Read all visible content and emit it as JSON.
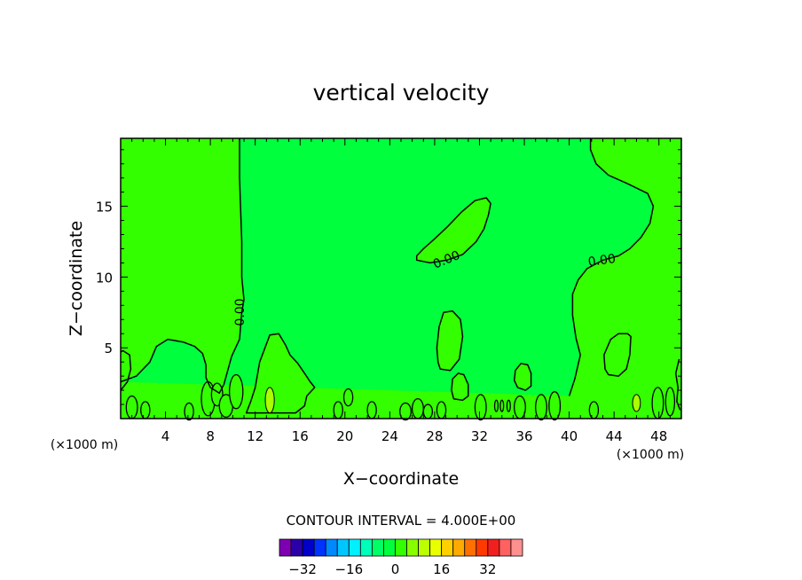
{
  "chart_data": {
    "type": "contour",
    "title": "vertical velocity",
    "xlabel": "X−coordinate",
    "ylabel": "Z−coordinate",
    "x_unit_left": "(×1000 m)",
    "x_unit_right": "(×1000 m)",
    "xlim": [
      0,
      50
    ],
    "ylim": [
      0,
      19.8
    ],
    "x_ticks": [
      4,
      8,
      12,
      16,
      20,
      24,
      28,
      32,
      36,
      40,
      44,
      48
    ],
    "y_ticks": [
      5,
      10,
      15
    ],
    "contour_interval_text": "CONTOUR INTERVAL = 4.000E+00",
    "contour_label": "0.00",
    "colorbar": {
      "colors": [
        "#7f00b2",
        "#2b00a8",
        "#0000c8",
        "#0033ff",
        "#0088ff",
        "#00c6ff",
        "#00f0ff",
        "#00ffb8",
        "#00ff66",
        "#00ff3c",
        "#33ff00",
        "#88ff00",
        "#bbff00",
        "#eaff00",
        "#ffd000",
        "#ffaa00",
        "#ff7000",
        "#ff3a00",
        "#f02020",
        "#ff6060",
        "#ff9090"
      ],
      "tick_labels": [
        "−32",
        "−16",
        "0",
        "16",
        "32"
      ],
      "tick_values": [
        -32,
        -16,
        0,
        16,
        32
      ]
    },
    "regions": [
      {
        "name": "positive",
        "color": "#33ff00"
      },
      {
        "name": "near-zero",
        "color": "#00ff3c"
      },
      {
        "name": "strong-positive",
        "color": "#aaff00"
      }
    ],
    "contours": [
      {
        "name": "left-upper",
        "level": 0.0,
        "points": [
          [
            0,
            2.6
          ],
          [
            1.4,
            3.0
          ],
          [
            2.6,
            4.0
          ],
          [
            3.2,
            5.1
          ],
          [
            4.2,
            5.6
          ],
          [
            5.6,
            5.4
          ],
          [
            6.6,
            5.1
          ],
          [
            7.3,
            4.6
          ],
          [
            7.6,
            3.8
          ],
          [
            7.6,
            2.9
          ],
          [
            8.0,
            2.2
          ],
          [
            8.8,
            1.8
          ],
          [
            9.2,
            2.4
          ],
          [
            9.9,
            4.4
          ],
          [
            10.6,
            5.6
          ],
          [
            10.8,
            7.5
          ],
          [
            11.0,
            8.4
          ],
          [
            10.8,
            10.0
          ],
          [
            10.8,
            12.5
          ],
          [
            10.6,
            17.0
          ],
          [
            10.6,
            19.8
          ]
        ]
      },
      {
        "name": "right-upper",
        "level": 0.0,
        "points": [
          [
            40.0,
            1.6
          ],
          [
            40.5,
            2.8
          ],
          [
            41.0,
            4.5
          ],
          [
            40.6,
            5.7
          ],
          [
            40.3,
            7.3
          ],
          [
            40.3,
            8.8
          ],
          [
            40.8,
            9.8
          ],
          [
            41.6,
            10.6
          ],
          [
            43.0,
            11.2
          ],
          [
            44.4,
            11.5
          ],
          [
            45.4,
            12.0
          ],
          [
            46.4,
            12.8
          ],
          [
            47.2,
            13.8
          ],
          [
            47.5,
            15.0
          ],
          [
            47.0,
            15.9
          ],
          [
            45.2,
            16.6
          ],
          [
            43.5,
            17.2
          ],
          [
            42.4,
            18.0
          ],
          [
            41.9,
            19.0
          ],
          [
            41.9,
            19.8
          ]
        ]
      },
      {
        "name": "upper-blob",
        "level": 0.0,
        "points": [
          [
            26.4,
            11.2
          ],
          [
            27.6,
            11.0
          ],
          [
            29.1,
            11.2
          ],
          [
            30.5,
            11.6
          ],
          [
            31.7,
            12.5
          ],
          [
            32.4,
            13.4
          ],
          [
            32.8,
            14.4
          ],
          [
            33.0,
            15.2
          ],
          [
            32.6,
            15.6
          ],
          [
            31.6,
            15.4
          ],
          [
            30.4,
            14.6
          ],
          [
            29.2,
            13.6
          ],
          [
            28.0,
            12.7
          ],
          [
            27.0,
            12.0
          ],
          [
            26.4,
            11.5
          ]
        ]
      },
      {
        "name": "mid-blob",
        "level": 0.0,
        "points": [
          [
            28.5,
            3.5
          ],
          [
            29.4,
            3.4
          ],
          [
            30.2,
            4.2
          ],
          [
            30.5,
            5.8
          ],
          [
            30.3,
            7.0
          ],
          [
            29.6,
            7.6
          ],
          [
            28.8,
            7.5
          ],
          [
            28.4,
            6.5
          ],
          [
            28.2,
            5.0
          ],
          [
            28.3,
            4.0
          ]
        ]
      },
      {
        "name": "right-blob",
        "level": 0.0,
        "points": [
          [
            43.5,
            3.1
          ],
          [
            44.4,
            3.0
          ],
          [
            45.1,
            3.5
          ],
          [
            45.4,
            4.5
          ],
          [
            45.5,
            5.8
          ],
          [
            45.2,
            6.0
          ],
          [
            44.4,
            6.0
          ],
          [
            43.7,
            5.6
          ],
          [
            43.1,
            4.5
          ],
          [
            43.2,
            3.5
          ]
        ]
      },
      {
        "name": "blob-36",
        "level": 0.0,
        "points": [
          [
            35.4,
            2.2
          ],
          [
            36.1,
            2.0
          ],
          [
            36.6,
            2.3
          ],
          [
            36.6,
            3.2
          ],
          [
            36.3,
            3.8
          ],
          [
            35.7,
            3.9
          ],
          [
            35.2,
            3.4
          ],
          [
            35.1,
            2.7
          ]
        ]
      },
      {
        "name": "blob-30",
        "level": 0.0,
        "points": [
          [
            29.7,
            1.4
          ],
          [
            30.5,
            1.3
          ],
          [
            31.0,
            1.6
          ],
          [
            31.0,
            2.4
          ],
          [
            30.6,
            3.1
          ],
          [
            30.1,
            3.2
          ],
          [
            29.6,
            2.8
          ],
          [
            29.5,
            2.0
          ]
        ]
      },
      {
        "name": "hill-13",
        "level": 0.0,
        "points": [
          [
            11.2,
            0.4
          ],
          [
            11.6,
            1.2
          ],
          [
            12.0,
            2.2
          ],
          [
            12.4,
            4.0
          ],
          [
            13.3,
            5.9
          ],
          [
            14.1,
            6.0
          ],
          [
            14.7,
            5.2
          ],
          [
            15.1,
            4.5
          ],
          [
            15.8,
            3.9
          ],
          [
            16.4,
            3.2
          ],
          [
            16.9,
            2.6
          ],
          [
            17.3,
            2.2
          ],
          [
            16.6,
            1.6
          ],
          [
            16.4,
            0.9
          ],
          [
            15.6,
            0.4
          ]
        ]
      },
      {
        "name": "left-edge-lobe",
        "level": 0.0,
        "points": [
          [
            0,
            2.0
          ],
          [
            0.6,
            2.6
          ],
          [
            0.9,
            3.5
          ],
          [
            0.8,
            4.5
          ],
          [
            0.2,
            4.8
          ],
          [
            0,
            4.7
          ]
        ]
      },
      {
        "name": "right-edge",
        "level": 0.0,
        "points": [
          [
            49.8,
            4.2
          ],
          [
            49.5,
            3.2
          ],
          [
            49.7,
            2.2
          ],
          [
            49.6,
            1.2
          ],
          [
            49.9,
            0.6
          ]
        ]
      }
    ],
    "small_cells": [
      {
        "name": "small-cell-1",
        "x": 1.0,
        "y": 0.8,
        "rx": 0.5,
        "ry": 0.8
      },
      {
        "name": "small-cell-2",
        "x": 2.2,
        "y": 0.6,
        "rx": 0.4,
        "ry": 0.6
      },
      {
        "name": "small-cell-3",
        "x": 6.1,
        "y": 0.5,
        "rx": 0.4,
        "ry": 0.6
      },
      {
        "name": "small-cell-4",
        "x": 7.8,
        "y": 1.4,
        "rx": 0.6,
        "ry": 1.2
      },
      {
        "name": "small-cell-5",
        "x": 8.6,
        "y": 1.7,
        "rx": 0.5,
        "ry": 0.8
      },
      {
        "name": "small-cell-6",
        "x": 9.4,
        "y": 0.9,
        "rx": 0.6,
        "ry": 0.8
      },
      {
        "name": "small-cell-7",
        "x": 10.3,
        "y": 1.9,
        "rx": 0.6,
        "ry": 1.2
      },
      {
        "name": "small-cell-8",
        "x": 15.0,
        "y": 2.0,
        "rx": 0.5,
        "ry": 0.9
      },
      {
        "name": "small-cell-9",
        "x": 20.3,
        "y": 1.5,
        "rx": 0.4,
        "ry": 0.6
      },
      {
        "name": "small-cell-10",
        "x": 19.4,
        "y": 0.6,
        "rx": 0.4,
        "ry": 0.6
      },
      {
        "name": "small-cell-11",
        "x": 22.4,
        "y": 0.6,
        "rx": 0.4,
        "ry": 0.6
      },
      {
        "name": "small-cell-12",
        "x": 25.4,
        "y": 0.5,
        "rx": 0.5,
        "ry": 0.6
      },
      {
        "name": "small-cell-13",
        "x": 26.5,
        "y": 0.7,
        "rx": 0.5,
        "ry": 0.7
      },
      {
        "name": "small-cell-14",
        "x": 27.4,
        "y": 0.5,
        "rx": 0.4,
        "ry": 0.5
      },
      {
        "name": "small-cell-15",
        "x": 28.6,
        "y": 0.6,
        "rx": 0.4,
        "ry": 0.6
      },
      {
        "name": "small-cell-16",
        "x": 32.1,
        "y": 0.8,
        "rx": 0.5,
        "ry": 0.9
      },
      {
        "name": "small-cell-17",
        "x": 33.5,
        "y": 0.9,
        "rx": 0.15,
        "ry": 0.4
      },
      {
        "name": "small-cell-18",
        "x": 34.0,
        "y": 0.9,
        "rx": 0.15,
        "ry": 0.4
      },
      {
        "name": "small-cell-19",
        "x": 34.6,
        "y": 0.9,
        "rx": 0.15,
        "ry": 0.4
      },
      {
        "name": "small-cell-20",
        "x": 35.6,
        "y": 0.8,
        "rx": 0.5,
        "ry": 0.8
      },
      {
        "name": "small-cell-21",
        "x": 37.5,
        "y": 0.8,
        "rx": 0.5,
        "ry": 0.9
      },
      {
        "name": "small-cell-22",
        "x": 38.7,
        "y": 0.9,
        "rx": 0.5,
        "ry": 1.0
      },
      {
        "name": "small-cell-23",
        "x": 42.2,
        "y": 0.6,
        "rx": 0.4,
        "ry": 0.6
      },
      {
        "name": "small-cell-24",
        "x": 47.9,
        "y": 1.1,
        "rx": 0.5,
        "ry": 1.1
      },
      {
        "name": "small-cell-25",
        "x": 49.0,
        "y": 1.2,
        "rx": 0.4,
        "ry": 1.0
      }
    ],
    "high_cells": [
      {
        "name": "high-cell-1",
        "x": 13.3,
        "y": 1.3,
        "rx": 0.4,
        "ry": 0.9
      },
      {
        "name": "high-cell-2",
        "x": 46.0,
        "y": 1.1,
        "rx": 0.35,
        "ry": 0.6
      }
    ]
  }
}
